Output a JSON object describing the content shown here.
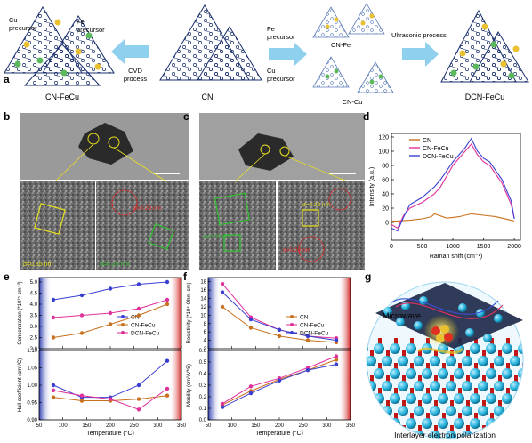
{
  "panels": {
    "a": {
      "letter": "a",
      "labels": {
        "cu_precursor_1": "Cu",
        "cu_precursor_2": "precursor",
        "fe_precursor_left_1": "Fe",
        "fe_precursor_left_2": "precursor",
        "cvd_1": "CVD",
        "cvd_2": "process",
        "fe_precursor_right_1": "Fe",
        "fe_precursor_right_2": "precursor",
        "cu_precursor_right_1": "Cu",
        "cu_precursor_right_2": "precursor",
        "cn_fe": "CN-Fe",
        "cn_cu": "CN-Cu",
        "ultrasonic": "Ultrasonic process",
        "cn_fecu": "CN-FeCu",
        "cn": "CN",
        "dcn_fecu": "DCN-FeCu"
      }
    },
    "b": {
      "letter": "b",
      "d1": "d=0.35 nm",
      "d2": "d=0.29 nm",
      "d3": "d=0.20 nm"
    },
    "c": {
      "letter": "c",
      "d1": "d=0.35 nm",
      "d2": "d=0.29 nm",
      "d3": "d=0.20 nm"
    },
    "g": {
      "letter": "g",
      "microwave": "Microwave",
      "caption": "Interlayer electron polarization"
    }
  },
  "colors": {
    "cn": "#c8701e",
    "cn_fecu": "#e0309a",
    "dcn_fecu": "#3a3fd0",
    "arrow": "#8fd0ef",
    "cyan_sphere": "#2bb6e0"
  },
  "chart_data": [
    {
      "panel": "d",
      "type": "line",
      "xlabel": "Raman shift (cm⁻¹)",
      "ylabel": "Intensity (a.u.)",
      "xlim": [
        0,
        2100
      ],
      "ylim": [
        -25,
        125
      ],
      "xticks": [
        0,
        500,
        1000,
        1500,
        2000
      ],
      "yticks": [
        0,
        20,
        40,
        60,
        80,
        100,
        120
      ],
      "series": [
        {
          "name": "CN",
          "color": "#c8701e",
          "x": [
            0,
            100,
            300,
            500,
            650,
            700,
            900,
            1100,
            1300,
            1500,
            1700,
            1900,
            2000
          ],
          "y": [
            2,
            2,
            3,
            5,
            8,
            12,
            6,
            8,
            12,
            10,
            8,
            4,
            2
          ]
        },
        {
          "name": "CN-FeCu",
          "color": "#e0309a",
          "x": [
            0,
            100,
            200,
            300,
            500,
            700,
            800,
            1000,
            1200,
            1300,
            1400,
            1500,
            1600,
            1800,
            1950,
            2000
          ],
          "y": [
            -3,
            -8,
            10,
            20,
            28,
            40,
            50,
            80,
            100,
            110,
            95,
            85,
            80,
            55,
            25,
            5
          ]
        },
        {
          "name": "DCN-FeCu",
          "color": "#3a3fd0",
          "x": [
            0,
            100,
            200,
            300,
            500,
            700,
            800,
            1000,
            1200,
            1300,
            1400,
            1500,
            1600,
            1800,
            1950,
            2000
          ],
          "y": [
            -8,
            -12,
            8,
            25,
            35,
            50,
            60,
            85,
            105,
            118,
            100,
            90,
            85,
            60,
            30,
            5
          ]
        }
      ]
    },
    {
      "panel": "e",
      "type": "line",
      "xlabel": "Temperature (°C)",
      "top": {
        "ylabel": "Concentration (*10¹⁵ cm⁻³)",
        "ylim": [
          2.0,
          5.2
        ],
        "yticks": [
          2.0,
          2.5,
          3.0,
          3.5,
          4.0,
          4.5,
          5.0
        ],
        "legend": [
          "CN",
          "CN-FeCu",
          "DCN-FeCu"
        ]
      },
      "bottom": {
        "ylabel": "Hall coefficient (cm³/C)",
        "ylim": [
          0.9,
          1.1
        ],
        "yticks": [
          0.9,
          0.95,
          1.0,
          1.05,
          1.1
        ]
      },
      "xlim": [
        50,
        350
      ],
      "xticks": [
        50,
        100,
        150,
        200,
        250,
        300,
        350
      ],
      "series_top": [
        {
          "name": "CN",
          "color": "#3a3fd0",
          "x": [
            80,
            140,
            200,
            260,
            320
          ],
          "y": [
            4.2,
            4.4,
            4.7,
            4.9,
            5.0
          ]
        },
        {
          "name": "CN-FeCu",
          "color": "#c8701e",
          "x": [
            80,
            140,
            200,
            260,
            320
          ],
          "y": [
            2.5,
            2.7,
            3.1,
            3.5,
            4.0
          ]
        },
        {
          "name": "DCN-FeCu",
          "color": "#e0309a",
          "x": [
            80,
            140,
            200,
            260,
            320
          ],
          "y": [
            3.4,
            3.5,
            3.6,
            3.8,
            4.2
          ]
        }
      ],
      "series_bottom": [
        {
          "name": "CN",
          "color": "#3a3fd0",
          "x": [
            80,
            140,
            200,
            260,
            320
          ],
          "y": [
            1.0,
            0.965,
            0.965,
            1.0,
            1.07
          ]
        },
        {
          "name": "CN-FeCu",
          "color": "#c8701e",
          "x": [
            80,
            140,
            200,
            260,
            320
          ],
          "y": [
            0.965,
            0.955,
            0.955,
            0.96,
            0.97
          ]
        },
        {
          "name": "DCN-FeCu",
          "color": "#e0309a",
          "x": [
            80,
            140,
            200,
            260,
            320
          ],
          "y": [
            0.985,
            0.97,
            0.96,
            0.93,
            0.99
          ]
        }
      ]
    },
    {
      "panel": "f",
      "type": "line",
      "xlabel": "Temperature (°C)",
      "top": {
        "ylabel": "Resistivity (*10⁴ Ohm·cm)",
        "ylim": [
          2,
          19
        ],
        "yticks": [
          2,
          4,
          6,
          8,
          10,
          12,
          14,
          16,
          18
        ],
        "legend": [
          "CN",
          "CN-FeCu",
          "DCN-FeCu"
        ]
      },
      "bottom": {
        "ylabel": "Mobility (cm²/V*S)",
        "ylim": [
          0.0,
          0.6
        ],
        "yticks": [
          0.0,
          0.1,
          0.2,
          0.3,
          0.4,
          0.5,
          0.6
        ]
      },
      "xlim": [
        50,
        350
      ],
      "xticks": [
        50,
        100,
        150,
        200,
        250,
        300,
        350
      ],
      "series_top": [
        {
          "name": "CN",
          "color": "#c8701e",
          "x": [
            80,
            140,
            200,
            260,
            320
          ],
          "y": [
            12.0,
            7.0,
            5.0,
            4.0,
            3.5
          ]
        },
        {
          "name": "CN-FeCu",
          "color": "#e0309a",
          "x": [
            80,
            140,
            200,
            260,
            320
          ],
          "y": [
            17.5,
            9.5,
            6.5,
            5.0,
            4.5
          ]
        },
        {
          "name": "DCN-FeCu",
          "color": "#3a3fd0",
          "x": [
            80,
            140,
            200,
            260,
            320
          ],
          "y": [
            15.5,
            9.0,
            6.5,
            5.0,
            4.0
          ]
        }
      ],
      "series_bottom": [
        {
          "name": "CN",
          "color": "#c8701e",
          "x": [
            80,
            140,
            200,
            260,
            320
          ],
          "y": [
            0.13,
            0.25,
            0.35,
            0.43,
            0.52
          ]
        },
        {
          "name": "CN-FeCu",
          "color": "#e0309a",
          "x": [
            80,
            140,
            200,
            260,
            320
          ],
          "y": [
            0.14,
            0.29,
            0.36,
            0.45,
            0.55
          ]
        },
        {
          "name": "DCN-FeCu",
          "color": "#3a3fd0",
          "x": [
            80,
            140,
            200,
            260,
            320
          ],
          "y": [
            0.11,
            0.23,
            0.34,
            0.43,
            0.48
          ]
        }
      ]
    }
  ]
}
